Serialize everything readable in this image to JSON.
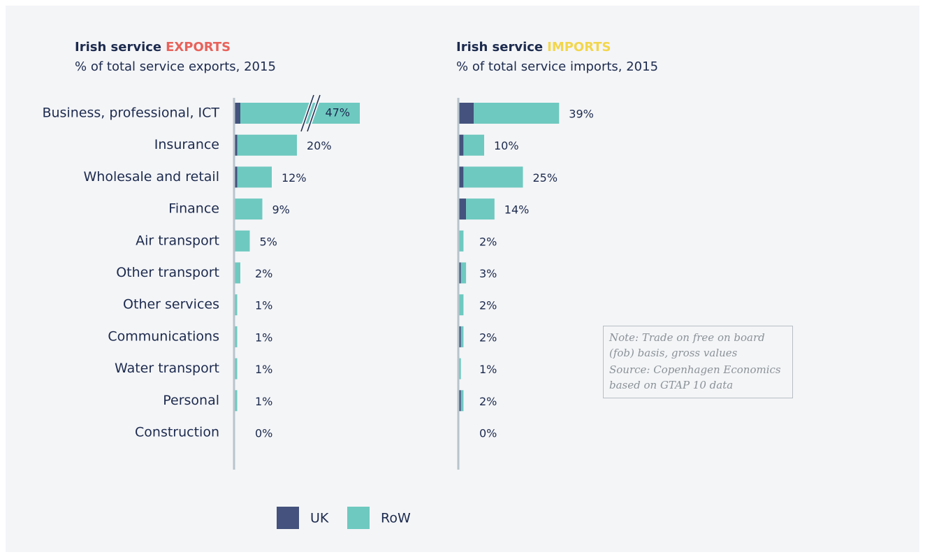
{
  "chart_data": [
    {
      "type": "bar",
      "orientation": "horizontal",
      "stacked": true,
      "title": "Irish service",
      "title_emphasis": "EXPORTS",
      "title_emphasis_color": "#e8625a",
      "subtitle": "% of total service exports, 2015",
      "categories": [
        "Business, professional, ICT",
        "Insurance",
        "Wholesale and retail",
        "Finance",
        "Air transport",
        "Other transport",
        "Other services",
        "Communications",
        "Water transport",
        "Personal",
        "Construction"
      ],
      "series": [
        {
          "name": "UK",
          "color": "#44527d",
          "values": [
            2,
            1,
            1,
            0,
            0,
            0,
            0,
            0,
            0,
            0,
            0
          ]
        },
        {
          "name": "RoW",
          "color": "#6ec9c0",
          "values": [
            45,
            19,
            11,
            9,
            5,
            2,
            1,
            1,
            1,
            1,
            0
          ]
        }
      ],
      "totals": [
        47,
        20,
        12,
        9,
        5,
        2,
        1,
        1,
        1,
        1,
        0
      ],
      "total_labels": [
        "47%",
        "20%",
        "12%",
        "9%",
        "5%",
        "2%",
        "1%",
        "1%",
        "1%",
        "1%",
        "0%"
      ],
      "xlim": [
        0,
        40
      ],
      "axis_break": true
    },
    {
      "type": "bar",
      "orientation": "horizontal",
      "stacked": true,
      "title": "Irish service",
      "title_emphasis": "IMPORTS",
      "title_emphasis_color": "#f2d64b",
      "subtitle": "% of total service imports, 2015",
      "series": [
        {
          "color": "#44527d",
          "values": [
            6,
            2,
            2,
            3,
            0,
            1,
            0,
            1,
            0,
            1,
            0
          ]
        },
        {
          "color": "#6ec9c0",
          "values": [
            33,
            8,
            23,
            11,
            2,
            2,
            2,
            1,
            1,
            1,
            0
          ]
        }
      ],
      "totals": [
        39,
        10,
        25,
        14,
        2,
        3,
        2,
        2,
        1,
        2,
        0
      ],
      "total_labels": [
        "39%",
        "10%",
        "25%",
        "14%",
        "2%",
        "3%",
        "2%",
        "2%",
        "1%",
        "2%",
        "0%"
      ],
      "xlim": [
        0,
        50
      ]
    }
  ],
  "note": "Note: Trade on free on board (fob) basis, gross values",
  "source": "Source: Copenhagen Economics based on GTAP 10 data"
}
